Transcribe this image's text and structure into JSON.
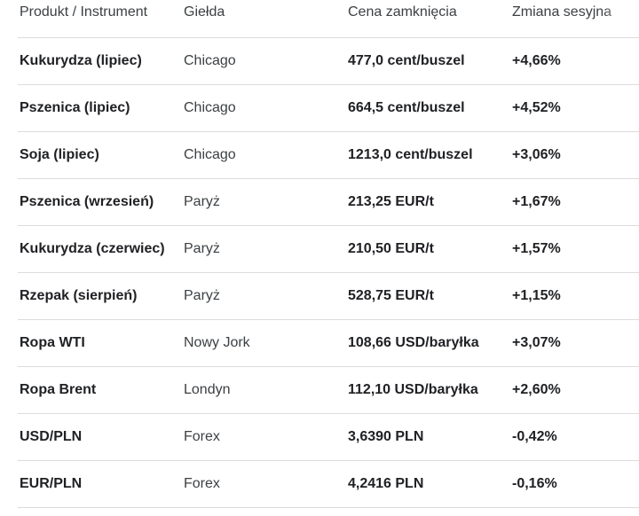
{
  "headers": {
    "product": "Produkt / Instrument",
    "exchange": "Giełda",
    "close_price": "Cena zamknięcia",
    "session_change": "Zmiana sesyjna"
  },
  "rows": [
    {
      "product": "Kukurydza (lipiec)",
      "exchange": "Chicago",
      "price": "477,0 cent/buszel",
      "change": "+4,66%"
    },
    {
      "product": "Pszenica (lipiec)",
      "exchange": "Chicago",
      "price": "664,5 cent/buszel",
      "change": "+4,52%"
    },
    {
      "product": "Soja (lipiec)",
      "exchange": "Chicago",
      "price": "1213,0 cent/buszel",
      "change": "+3,06%"
    },
    {
      "product": "Pszenica (wrzesień)",
      "exchange": "Paryż",
      "price": "213,25 EUR/t",
      "change": "+1,67%"
    },
    {
      "product": "Kukurydza (czerwiec)",
      "exchange": "Paryż",
      "price": "210,50 EUR/t",
      "change": "+1,57%"
    },
    {
      "product": "Rzepak (sierpień)",
      "exchange": "Paryż",
      "price": "528,75 EUR/t",
      "change": "+1,15%"
    },
    {
      "product": "Ropa WTI",
      "exchange": "Nowy Jork",
      "price": "108,66 USD/baryłka",
      "change": "+3,07%"
    },
    {
      "product": "Ropa Brent",
      "exchange": "Londyn",
      "price": "112,10 USD/baryłka",
      "change": "+2,60%"
    },
    {
      "product": "USD/PLN",
      "exchange": "Forex",
      "price": "3,6390 PLN",
      "change": "-0,42%"
    },
    {
      "product": "EUR/PLN",
      "exchange": "Forex",
      "price": "4,2416 PLN",
      "change": "-0,16%"
    }
  ]
}
